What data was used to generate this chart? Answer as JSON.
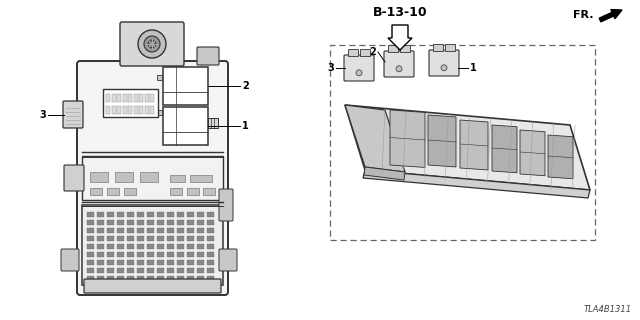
{
  "bg_color": "#ffffff",
  "line_color": "#333333",
  "dark_color": "#555555",
  "text_color": "#000000",
  "diagram_id": "TLA4B1311",
  "ref_label": "B-13-10",
  "fr_label": "FR.",
  "labels_left": [
    "1",
    "2",
    "3"
  ],
  "labels_right": [
    "1",
    "2",
    "3"
  ]
}
